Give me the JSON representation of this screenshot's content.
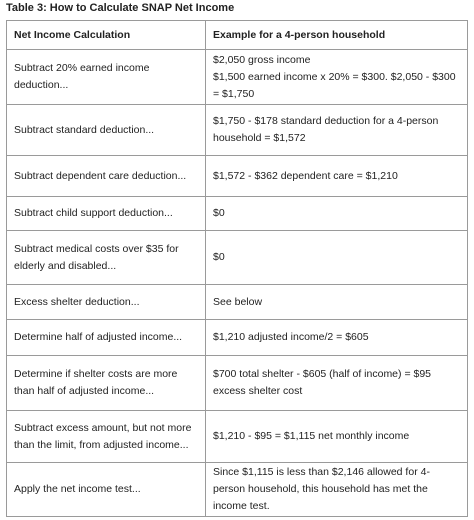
{
  "header": {
    "title": "Table 3: How to Calculate SNAP Net Income"
  },
  "table": {
    "columns": [
      "Net Income Calculation",
      "Example for a 4-person household"
    ],
    "rows": [
      [
        "Subtract 20% earned income deduction...",
        [
          "$2,050 gross income",
          "$1,500 earned income x 20% = $300. $2,050 - $300 = $1,750"
        ]
      ],
      [
        "Subtract standard deduction...",
        "$1,750 - $178 standard deduction for a 4-person household = $1,572"
      ],
      [
        "Subtract dependent care deduction...",
        "$1,572 - $362 dependent care = $1,210"
      ],
      [
        "Subtract child support deduction...",
        "$0"
      ],
      [
        "Subtract medical costs over $35 for elderly and disabled...",
        "$0"
      ],
      [
        "Excess shelter deduction...",
        "See below"
      ],
      [
        "Determine half of adjusted income...",
        "$1,210 adjusted income/2 = $605"
      ],
      [
        "Determine if shelter costs are more than half of adjusted income...",
        "$700 total shelter - $605 (half of income) = $95 excess shelter cost"
      ],
      [
        "Subtract excess amount, but not more than the limit, from adjusted income...",
        "$1,210 - $95 = $1,115 net monthly income"
      ],
      [
        "Apply the net income test...",
        "Since $1,115 is less than $2,146 allowed for 4-person household, this household has met the income test."
      ]
    ]
  }
}
